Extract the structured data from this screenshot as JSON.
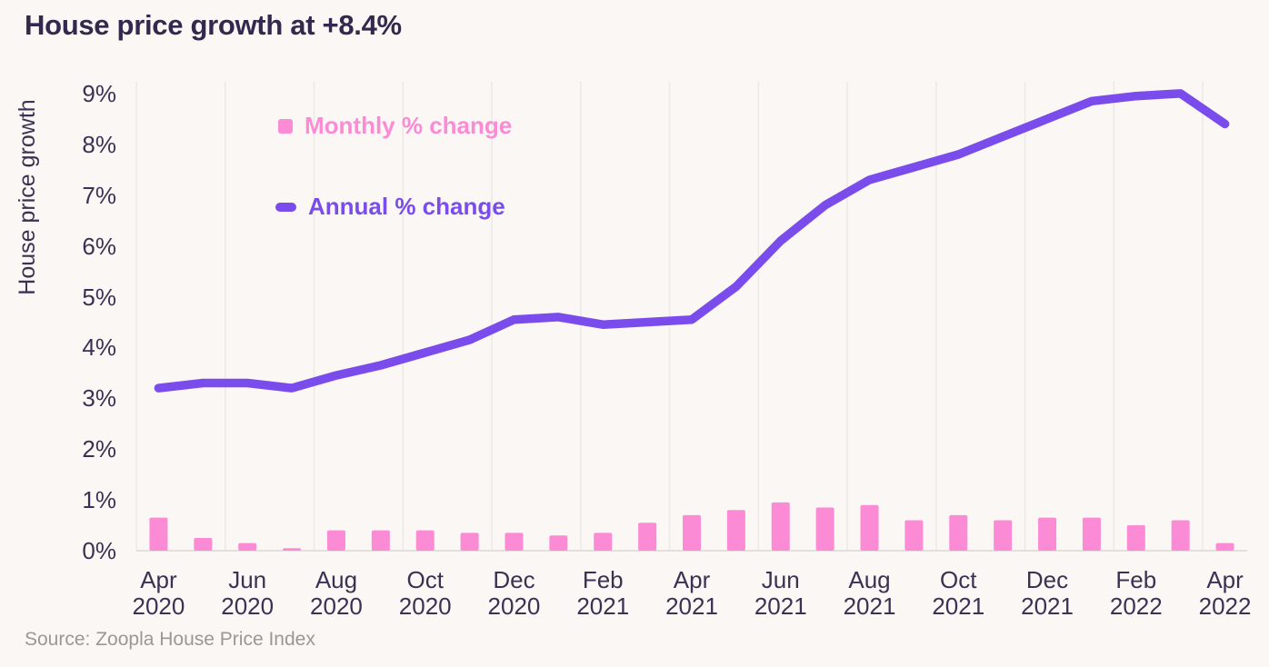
{
  "title": "House price growth at +8.4%",
  "source_note": "Source: Zoopla House Price Index",
  "colors": {
    "background": "#FAF7F4",
    "title-text": "#33294E",
    "axis-text": "#3A3254",
    "grid-line": "#ECE9E6",
    "baseline": "#E2DFDC",
    "source-text": "#9B9792",
    "monthly-pink": "#FB8BD4",
    "annual-purple": "#7B4CEC"
  },
  "chart_data": {
    "type": "bar+line combo",
    "title": "House price growth at +8.4%",
    "xlabel": "",
    "ylabel": "House price growth",
    "ylim": [
      0,
      9
    ],
    "y_ticks": [
      "0%",
      "1%",
      "2%",
      "3%",
      "4%",
      "5%",
      "6%",
      "7%",
      "8%",
      "9%"
    ],
    "x_tick_every": 2,
    "grid": "vertical gridlines at each labeled month, light baseline at 0%",
    "legend_position": "inside top-left",
    "categories": [
      "Apr 2020",
      "May 2020",
      "Jun 2020",
      "Jul 2020",
      "Aug 2020",
      "Sep 2020",
      "Oct 2020",
      "Nov 2020",
      "Dec 2020",
      "Jan 2021",
      "Feb 2021",
      "Mar 2021",
      "Apr 2021",
      "May 2021",
      "Jun 2021",
      "Jul 2021",
      "Aug 2021",
      "Sep 2021",
      "Oct 2021",
      "Nov 2021",
      "Dec 2021",
      "Jan 2022",
      "Feb 2022",
      "Mar 2022",
      "Apr 2022"
    ],
    "series": [
      {
        "name": "Monthly % change",
        "type": "bar",
        "color": "#FB8BD4",
        "values": [
          0.65,
          0.25,
          0.15,
          0.05,
          0.4,
          0.4,
          0.4,
          0.35,
          0.35,
          0.3,
          0.35,
          0.55,
          0.7,
          0.8,
          0.95,
          0.85,
          0.9,
          0.6,
          0.7,
          0.6,
          0.65,
          0.65,
          0.5,
          0.6,
          0.15
        ]
      },
      {
        "name": "Annual % change",
        "type": "line",
        "color": "#7B4CEC",
        "values": [
          3.2,
          3.3,
          3.3,
          3.2,
          3.45,
          3.65,
          3.9,
          4.15,
          4.55,
          4.6,
          4.45,
          4.5,
          4.55,
          5.2,
          6.1,
          6.8,
          7.3,
          7.55,
          7.8,
          8.15,
          8.5,
          8.85,
          8.95,
          9.0,
          8.4
        ]
      }
    ]
  }
}
